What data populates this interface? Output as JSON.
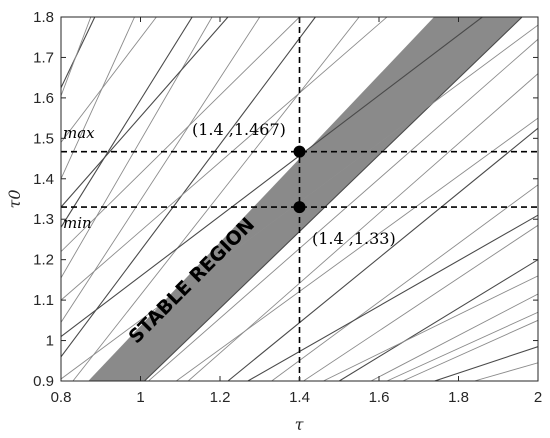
{
  "chart_data": {
    "type": "line",
    "xlabel": "τ",
    "ylabel": "τ0",
    "xlim": [
      0.8,
      2.0
    ],
    "ylim": [
      0.9,
      1.8
    ],
    "xticks": [
      "0.8",
      "1",
      "1.2",
      "1.4",
      "1.6",
      "1.8",
      "2"
    ],
    "yticks": [
      "0.9",
      "1",
      "1.1",
      "1.2",
      "1.3",
      "1.4",
      "1.5",
      "1.6",
      "1.7",
      "1.8"
    ],
    "grid": false,
    "stable_region": {
      "label": "STABLE REGION",
      "color": "#8a8a8a",
      "polygon": [
        [
          0.87,
          0.9
        ],
        [
          1.01,
          0.9
        ],
        [
          1.96,
          1.8
        ],
        [
          1.74,
          1.8
        ]
      ]
    },
    "boundary_lines": [
      [
        [
          0.8,
          1.625
        ],
        [
          0.885,
          1.8
        ]
      ],
      [
        [
          0.8,
          1.605
        ],
        [
          0.875,
          1.8
        ]
      ],
      [
        [
          0.8,
          1.4
        ],
        [
          0.985,
          1.8
        ]
      ],
      [
        [
          0.8,
          1.28
        ],
        [
          1.13,
          1.8
        ]
      ],
      [
        [
          0.8,
          1.155
        ],
        [
          1.18,
          1.8
        ]
      ],
      [
        [
          0.8,
          1.045
        ],
        [
          1.3,
          1.8
        ]
      ],
      [
        [
          0.8,
          0.96
        ],
        [
          1.44,
          1.8
        ]
      ],
      [
        [
          0.83,
          0.9
        ],
        [
          1.55,
          1.8
        ]
      ],
      [
        [
          0.87,
          0.9
        ],
        [
          1.74,
          1.8
        ]
      ],
      [
        [
          1.01,
          0.9
        ],
        [
          1.96,
          1.8
        ]
      ],
      [
        [
          1.02,
          0.9
        ],
        [
          2.0,
          1.745
        ]
      ],
      [
        [
          1.12,
          0.9
        ],
        [
          2.0,
          1.66
        ]
      ],
      [
        [
          1.22,
          0.9
        ],
        [
          2.0,
          1.525
        ]
      ],
      [
        [
          1.33,
          0.9
        ],
        [
          2.0,
          1.385
        ]
      ],
      [
        [
          1.41,
          0.9
        ],
        [
          2.0,
          1.285
        ]
      ],
      [
        [
          1.5,
          0.9
        ],
        [
          2.0,
          1.2
        ]
      ],
      [
        [
          1.58,
          0.9
        ],
        [
          2.0,
          1.115
        ]
      ],
      [
        [
          1.66,
          0.9
        ],
        [
          2.0,
          1.05
        ]
      ],
      [
        [
          1.74,
          0.9
        ],
        [
          2.0,
          0.985
        ]
      ],
      [
        [
          1.84,
          0.9
        ],
        [
          2.0,
          0.945
        ]
      ],
      [
        [
          0.8,
          0.905
        ],
        [
          2.0,
          1.78
        ]
      ],
      [
        [
          0.8,
          1.01
        ],
        [
          1.86,
          1.8
        ]
      ],
      [
        [
          0.8,
          1.1
        ],
        [
          1.62,
          1.8
        ]
      ],
      [
        [
          0.8,
          1.22
        ],
        [
          1.4,
          1.8
        ]
      ],
      [
        [
          0.8,
          1.33
        ],
        [
          1.22,
          1.8
        ]
      ],
      [
        [
          0.8,
          1.49
        ],
        [
          1.04,
          1.8
        ]
      ],
      [
        [
          1.09,
          0.9
        ],
        [
          2.0,
          1.55
        ]
      ],
      [
        [
          1.27,
          0.9
        ],
        [
          2.0,
          1.31
        ]
      ],
      [
        [
          1.46,
          0.9
        ],
        [
          2.0,
          1.16
        ]
      ],
      [
        [
          1.62,
          0.9
        ],
        [
          2.0,
          1.07
        ]
      ]
    ],
    "reference_lines": {
      "vertical_x": 1.4,
      "horizontal_y": [
        1.467,
        1.33
      ]
    },
    "points": [
      {
        "x": 1.4,
        "y": 1.467,
        "label": "(1.4 ,1.467)"
      },
      {
        "x": 1.4,
        "y": 1.33,
        "label": "(1.4 ,1.33)"
      }
    ],
    "annotations": [
      {
        "text": "max"
      },
      {
        "text": "min"
      }
    ]
  }
}
